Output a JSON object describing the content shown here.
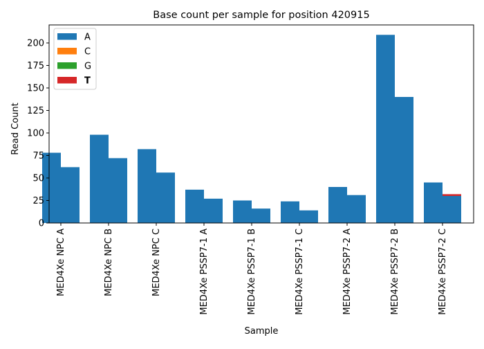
{
  "chart_data": {
    "type": "bar",
    "title": "Base count per sample for position 420915",
    "xlabel": "Sample",
    "ylabel": "Read Count",
    "ylim": [
      0,
      220
    ],
    "yticks": [
      0,
      25,
      50,
      75,
      100,
      125,
      150,
      175,
      200
    ],
    "legend_position": "top-left",
    "categories": [
      "MED4Xe NPC A",
      "MED4Xe NPC B",
      "MED4Xe NPC C",
      "MED4Xe PSSP7-1 A",
      "MED4Xe PSSP7-1 B",
      "MED4Xe PSSP7-1 C",
      "MED4Xe PSSP7-2 A",
      "MED4Xe PSSP7-2 B",
      "MED4Xe PSSP7-2 C"
    ],
    "series": [
      {
        "name": "A",
        "color": "#1f77b4",
        "values": [
          [
            78,
            62
          ],
          [
            98,
            72
          ],
          [
            82,
            56
          ],
          [
            37,
            27
          ],
          [
            25,
            16
          ],
          [
            24,
            14
          ],
          [
            40,
            31
          ],
          [
            209,
            140
          ],
          [
            45,
            30
          ]
        ]
      },
      {
        "name": "C",
        "color": "#ff7f0e",
        "values": [
          [
            0,
            0
          ],
          [
            0,
            0
          ],
          [
            0,
            0
          ],
          [
            0,
            0
          ],
          [
            0,
            0
          ],
          [
            0,
            0
          ],
          [
            0,
            0
          ],
          [
            0,
            0
          ],
          [
            0,
            0
          ]
        ]
      },
      {
        "name": "G",
        "color": "#2ca02c",
        "values": [
          [
            0,
            0
          ],
          [
            0,
            0
          ],
          [
            0,
            0
          ],
          [
            0,
            0
          ],
          [
            0,
            0
          ],
          [
            0,
            0
          ],
          [
            0,
            0
          ],
          [
            0,
            0
          ],
          [
            0,
            0
          ]
        ]
      },
      {
        "name": "T",
        "color": "#d62728",
        "bold_legend": true,
        "values": [
          [
            0,
            0
          ],
          [
            0,
            0
          ],
          [
            0,
            0
          ],
          [
            0,
            0
          ],
          [
            0,
            0
          ],
          [
            0,
            0
          ],
          [
            0,
            0
          ],
          [
            0,
            0
          ],
          [
            0,
            2
          ]
        ]
      }
    ]
  }
}
